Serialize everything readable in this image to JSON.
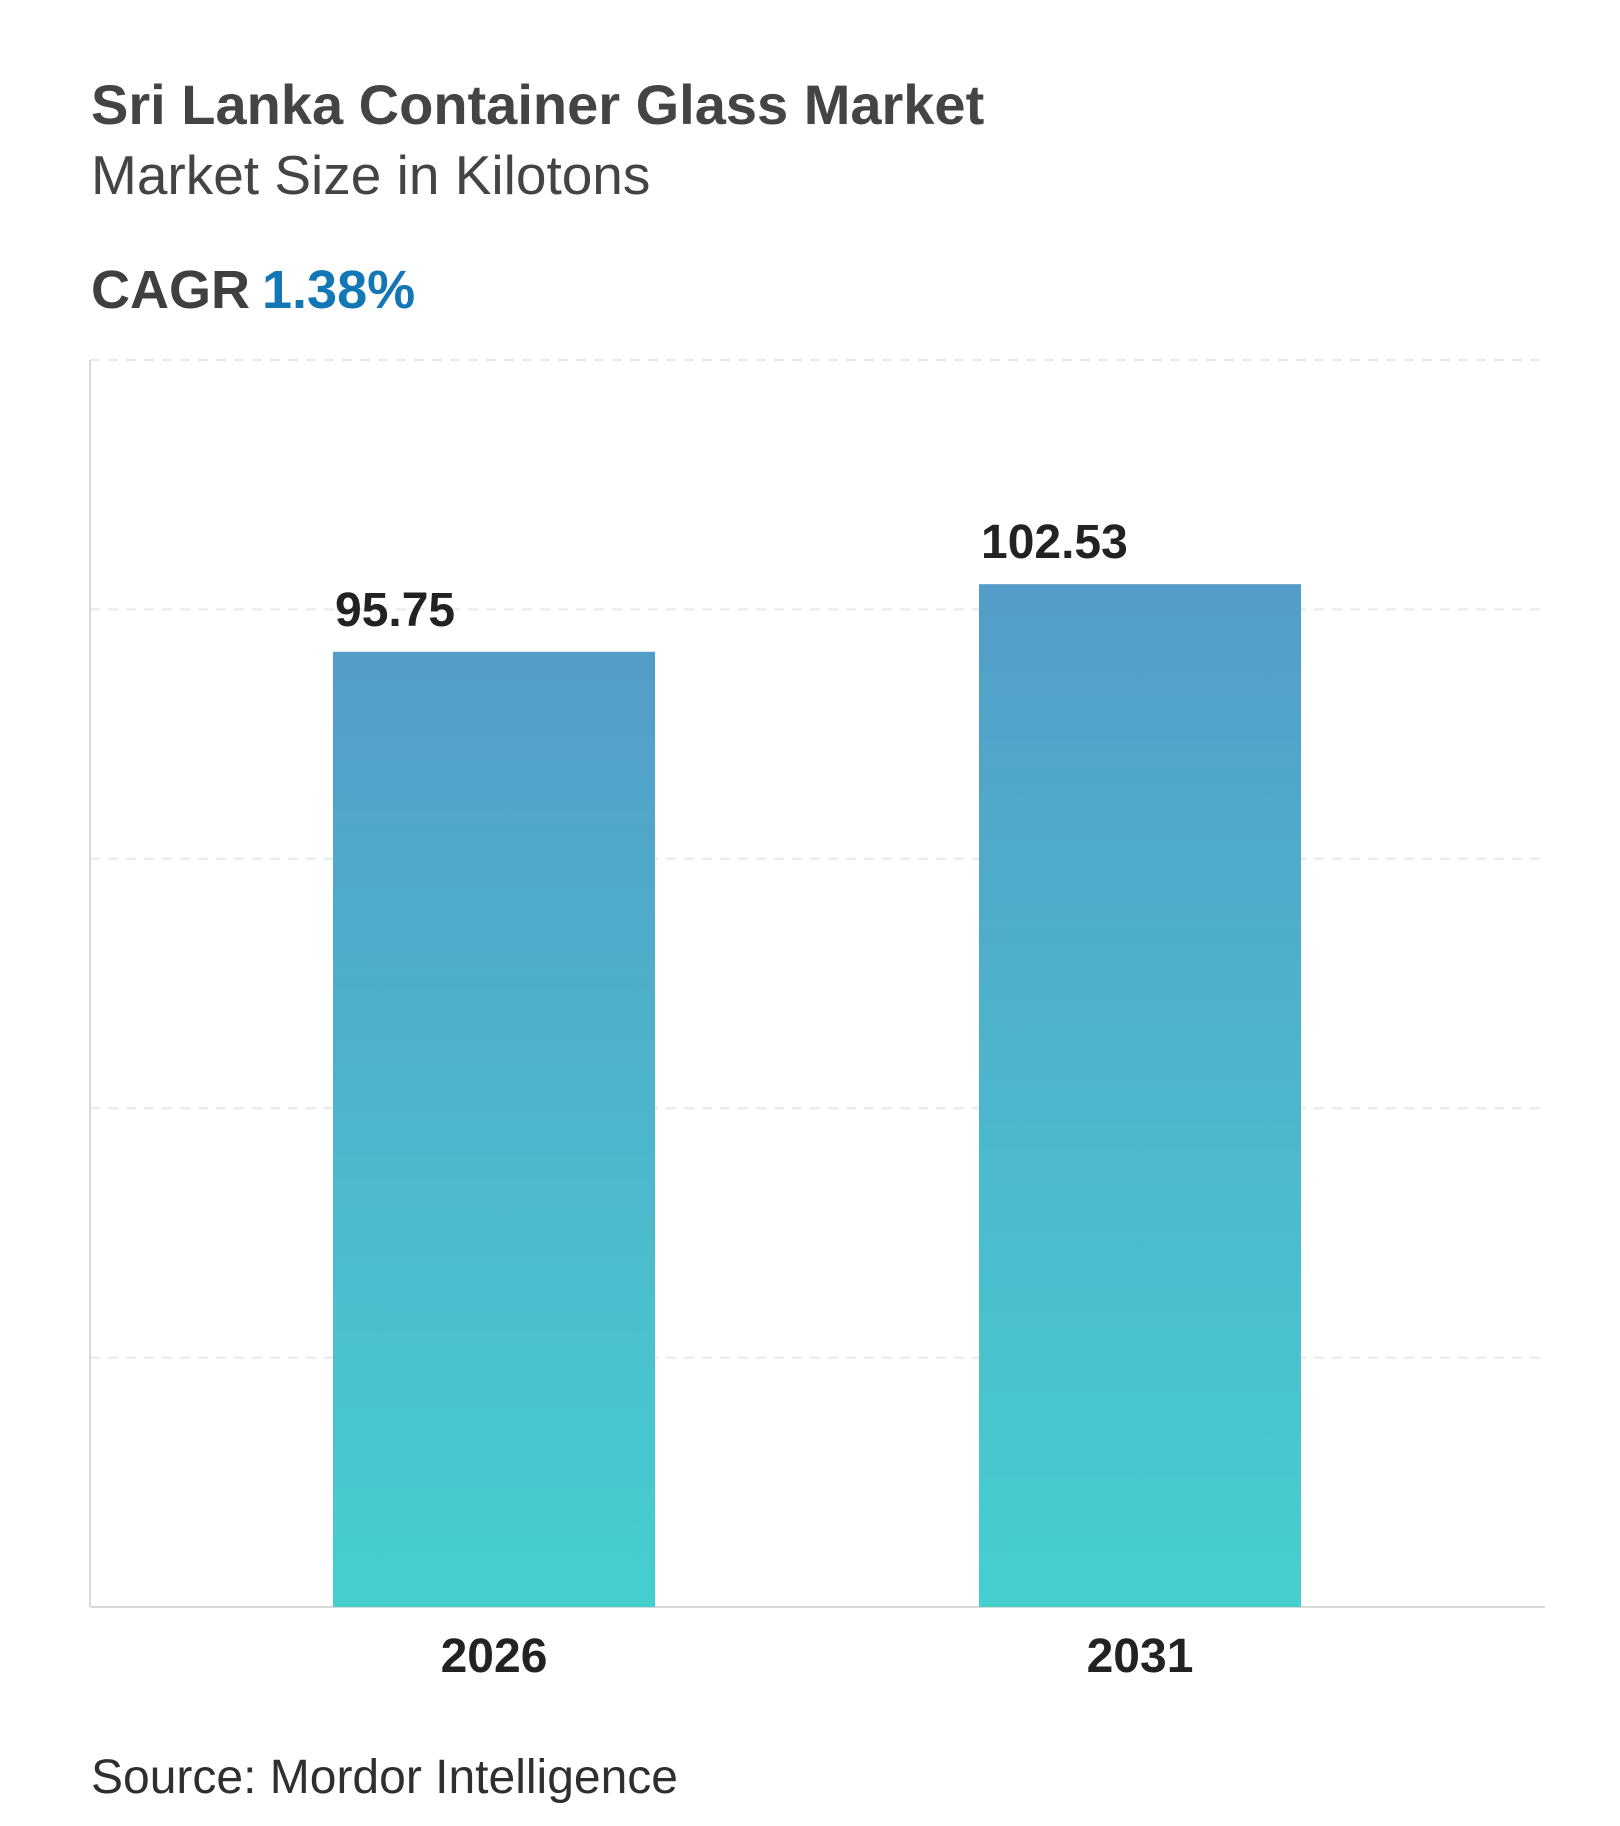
{
  "header": {
    "title": "Sri Lanka Container Glass Market",
    "subtitle": "Market Size in Kilotons"
  },
  "cagr": {
    "label": "CAGR",
    "value": "1.38%"
  },
  "colors": {
    "bar_top": "#539dc8",
    "bar_bottom": "#46cfcf",
    "cagr_value": "#1477b5",
    "gridline": "#e8e8e8",
    "axis": "#d9d9d9"
  },
  "chart_data": {
    "type": "bar",
    "categories": [
      "2026",
      "2031"
    ],
    "values": [
      95.75,
      102.53
    ],
    "value_labels": [
      "95.75",
      "102.53"
    ],
    "title": "Sri Lanka Container Glass Market",
    "subtitle": "Market Size in Kilotons",
    "xlabel": "",
    "ylabel": "",
    "ylim": [
      0,
      125
    ],
    "grid": true,
    "legend": "none"
  },
  "footer": {
    "source": "Source: Mordor Intelligence"
  }
}
